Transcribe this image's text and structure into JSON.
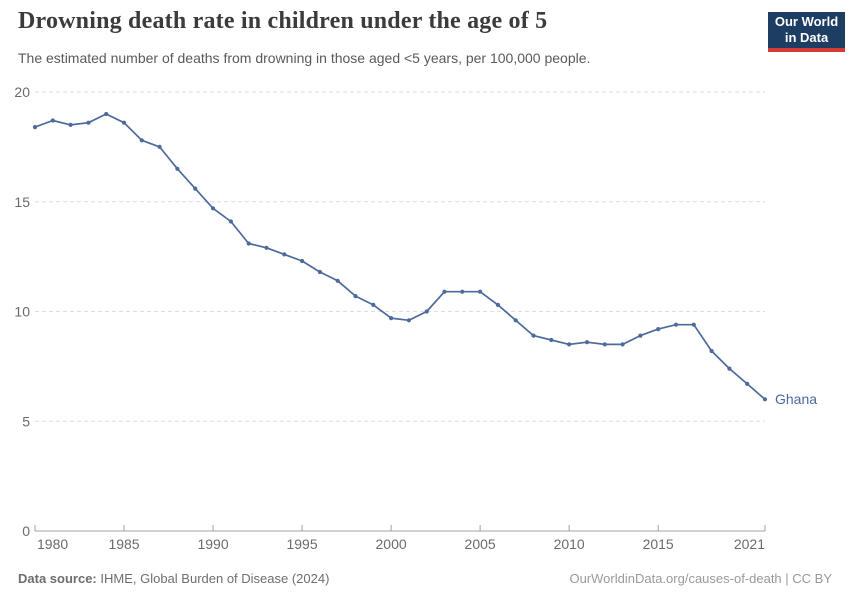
{
  "header": {
    "title": "Drowning death rate in children under the age of 5",
    "subtitle": "The estimated number of deaths from drowning in those aged <5 years, per 100,000 people.",
    "logo": {
      "line1": "Our World",
      "line2": "in Data"
    }
  },
  "footer": {
    "source_label": "Data source:",
    "source_value": "IHME, Global Burden of Disease (2024)",
    "attribution": "OurWorldinData.org/causes-of-death | CC BY"
  },
  "chart_data": {
    "type": "line",
    "title": "Drowning death rate in children under the age of 5",
    "subtitle": "The estimated number of deaths from drowning in those aged <5 years, per 100,000 people.",
    "x": [
      1980,
      1981,
      1982,
      1983,
      1984,
      1985,
      1986,
      1987,
      1988,
      1989,
      1990,
      1991,
      1992,
      1993,
      1994,
      1995,
      1996,
      1997,
      1998,
      1999,
      2000,
      2001,
      2002,
      2003,
      2004,
      2005,
      2006,
      2007,
      2008,
      2009,
      2010,
      2011,
      2012,
      2013,
      2014,
      2015,
      2016,
      2017,
      2018,
      2019,
      2020,
      2021
    ],
    "series": [
      {
        "name": "Ghana",
        "values": [
          18.4,
          18.7,
          18.5,
          18.6,
          19.0,
          18.6,
          17.8,
          17.5,
          16.5,
          15.6,
          14.7,
          14.1,
          13.1,
          12.9,
          12.6,
          12.3,
          11.8,
          11.4,
          10.7,
          10.3,
          9.7,
          9.6,
          10.0,
          10.9,
          10.9,
          10.9,
          10.3,
          9.6,
          8.9,
          8.7,
          8.5,
          8.6,
          8.5,
          8.5,
          8.9,
          9.2,
          9.4,
          9.4,
          8.2,
          7.4,
          6.7,
          6.0
        ]
      }
    ],
    "xlabel": "",
    "ylabel": "",
    "xlim": [
      1980,
      2021
    ],
    "ylim": [
      0,
      20
    ],
    "xticks": [
      1980,
      1985,
      1990,
      1995,
      2000,
      2005,
      2010,
      2015,
      2021
    ],
    "yticks": [
      0,
      5,
      10,
      15,
      20
    ],
    "grid": "horizontal-dashed",
    "legend_position": "end-of-line-label",
    "entity_label": "Ghana"
  },
  "colors": {
    "line": "#4C6A9C",
    "grid": "#dedede",
    "axis": "#a1a1a1",
    "tick_label": "#6b6b6b",
    "title": "#3b3b3b",
    "subtitle": "#5a5a5a",
    "logo_bg": "#1d3d63",
    "logo_text": "#ffffff",
    "logo_red": "#d73c34",
    "footer_text": "#6e6e6e",
    "attribution_text": "#9a9a9a",
    "background": "#ffffff"
  }
}
